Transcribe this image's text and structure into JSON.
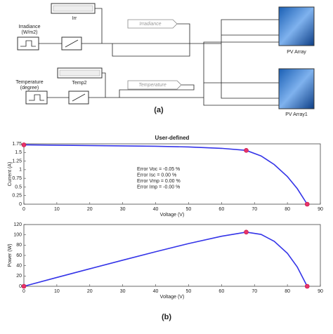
{
  "diagram": {
    "caption": "(a)",
    "irr_display": "Irr",
    "irradiance_source": [
      "Irradiance",
      "(W/m2)"
    ],
    "irradiance_tag": "Irradiance",
    "pv_array": "PV Array",
    "temp_display": "Temp2",
    "temperature_source": [
      "Temperature",
      "(degree)"
    ],
    "temperature_tag": "Temperature",
    "pv_array1": "PV Array1"
  },
  "caption_b": "(b)",
  "chart_data": [
    {
      "type": "line",
      "title": "User-defined",
      "xlabel": "Voltage (V)",
      "ylabel": "Current (A)",
      "x": [
        0,
        10,
        20,
        30,
        40,
        50,
        60,
        67.5,
        72,
        76,
        80,
        83,
        86
      ],
      "values": [
        1.72,
        1.71,
        1.7,
        1.69,
        1.68,
        1.66,
        1.62,
        1.56,
        1.4,
        1.15,
        0.8,
        0.45,
        0
      ],
      "color": "#3434e8",
      "markers": {
        "x": [
          0,
          67.5,
          86
        ],
        "values": [
          1.72,
          1.56,
          0
        ],
        "color": "#e8336a"
      },
      "xlim": [
        0,
        90
      ],
      "xticks": [
        0,
        10,
        20,
        30,
        40,
        50,
        60,
        70,
        80,
        90
      ],
      "ylim": [
        0,
        1.75
      ],
      "yticks": [
        0,
        0.25,
        0.5,
        0.75,
        1,
        1.25,
        1.5,
        1.75
      ],
      "annotations": [
        "Error Voc = -0.05  %",
        "Error Isc = 0.00  %",
        "Error Vmp = 0.00  %",
        "Error Imp = -0.00  %"
      ]
    },
    {
      "type": "line",
      "xlabel": "Voltage (V)",
      "ylabel": "Power (W)",
      "x": [
        0,
        10,
        20,
        30,
        40,
        50,
        60,
        67.5,
        72,
        76,
        80,
        83,
        86
      ],
      "values": [
        0,
        17.1,
        34,
        50.7,
        67.2,
        83,
        97.2,
        105.3,
        100.8,
        87.4,
        64,
        37.4,
        0
      ],
      "color": "#3434e8",
      "markers": {
        "x": [
          0,
          67.5,
          86
        ],
        "values": [
          0,
          105.3,
          0
        ],
        "color": "#e8336a"
      },
      "xlim": [
        0,
        90
      ],
      "xticks": [
        0,
        10,
        20,
        30,
        40,
        50,
        60,
        70,
        80,
        90
      ],
      "ylim": [
        0,
        120
      ],
      "yticks": [
        0,
        20,
        40,
        60,
        80,
        100,
        120
      ]
    }
  ]
}
